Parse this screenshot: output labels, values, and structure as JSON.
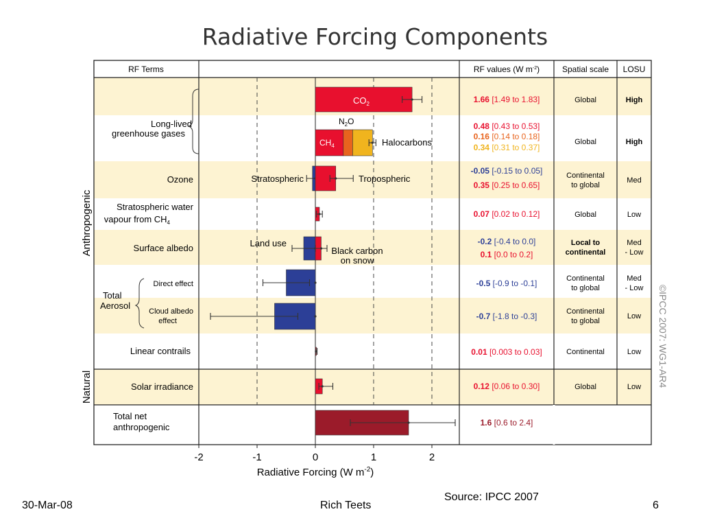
{
  "slide": {
    "title": "Radiative Forcing Components",
    "date": "30-Mar-08",
    "author": "Rich Teets",
    "page": "6",
    "source": "Source: IPCC 2007",
    "copyright": "©IPCC 2007: WG1-AR4"
  },
  "headers": {
    "rf_terms": "RF Terms",
    "rf_values": "RF values (W m",
    "rf_values_sup": "-2",
    "rf_values_close": ")",
    "spatial": "Spatial scale",
    "losu": "LOSU"
  },
  "groups": {
    "anthropogenic": "Anthropogenic",
    "natural": "Natural",
    "llgg_line1": "Long-lived",
    "llgg_line2": "greenhouse gases",
    "aerosol_line1": "Total",
    "aerosol_line2": "Aerosol"
  },
  "rows": [
    {
      "term": [
        "Ozone"
      ],
      "spatial": [
        "Continental",
        "to global"
      ],
      "losu": [
        "Med"
      ]
    },
    {
      "term": [
        "Stratospheric water",
        "vapour from CH"
      ],
      "term_sub": "4",
      "spatial": [
        "Global"
      ],
      "losu": [
        "Low"
      ]
    },
    {
      "term": [
        "Surface albedo"
      ],
      "spatial": [
        "Local to",
        "continental"
      ],
      "losu": [
        "Med",
        "- Low"
      ]
    },
    {
      "term": [
        "Direct effect"
      ],
      "spatial": [
        "Continental",
        "to global"
      ],
      "losu": [
        "Med",
        "- Low"
      ]
    },
    {
      "term": [
        "Cloud albedo",
        "effect"
      ],
      "spatial": [
        "Continental",
        "to global"
      ],
      "losu": [
        "Low"
      ]
    },
    {
      "term": [
        "Linear contrails"
      ],
      "spatial": [
        "Continental"
      ],
      "losu": [
        "Low"
      ]
    },
    {
      "term": [
        "Solar irradiance"
      ],
      "spatial": [
        "Global"
      ],
      "losu": [
        "Low"
      ]
    },
    {
      "term": [
        "Total net",
        "anthropogenic"
      ],
      "spatial": [],
      "losu": []
    }
  ],
  "llgg_spatial": [
    [
      "Global"
    ],
    [
      "Global"
    ]
  ],
  "llgg_losu": [
    [
      "High"
    ],
    [
      "High"
    ]
  ],
  "values_text": [
    [
      {
        "main": "1.66",
        "range": " [1.49 to 1.83]",
        "color": "#e8102e"
      }
    ],
    [
      {
        "main": "0.48",
        "range": " [0.43 to 0.53]",
        "color": "#e8102e"
      },
      {
        "main": "0.16",
        "range": " [0.14 to 0.18]",
        "color": "#e8641e"
      },
      {
        "main": "0.34",
        "range": " [0.31 to 0.37]",
        "color": "#f0b41e"
      }
    ],
    [
      {
        "main": "-0.05",
        "range": " [-0.15 to 0.05]",
        "color": "#2c3f97"
      },
      {
        "main": "0.35",
        "range": " [0.25 to 0.65]",
        "color": "#e8102e"
      }
    ],
    [
      {
        "main": "0.07",
        "range": " [0.02 to 0.12]",
        "color": "#e8102e"
      }
    ],
    [
      {
        "main": "-0.2",
        "range": " [-0.4 to 0.0]",
        "color": "#2c3f97"
      },
      {
        "main": "0.1",
        "range": " [0.0 to 0.2]",
        "color": "#e8102e"
      }
    ],
    [
      {
        "main": "-0.5",
        "range": " [-0.9 to -0.1]",
        "color": "#2c3f97"
      }
    ],
    [
      {
        "main": "-0.7",
        "range": " [-1.8 to -0.3]",
        "color": "#2c3f97"
      }
    ],
    [
      {
        "main": "0.01",
        "range": " [0.003 to 0.03]",
        "color": "#e8102e"
      }
    ],
    [
      {
        "main": "0.12",
        "range": " [0.06 to 0.30]",
        "color": "#e8102e"
      }
    ],
    [
      {
        "main": "1.6",
        "range": " [0.6 to 2.4]",
        "color": "#9b1b2a"
      }
    ]
  ],
  "chart_data": {
    "type": "bar",
    "orientation": "horizontal",
    "title": "Radiative Forcing Components",
    "xlabel": "Radiative Forcing  (W m",
    "xlabel_sup": "-2",
    "xlabel_close": ")",
    "xlim": [
      -2,
      2.5
    ],
    "xticks": [
      -2,
      -1,
      0,
      1,
      2
    ],
    "dashed_gridlines_at": [
      -1,
      1,
      2
    ],
    "bars": [
      {
        "label": "CO",
        "label_sub": "2",
        "row": 0,
        "start": 0,
        "end": 1.66,
        "lo": 1.49,
        "hi": 1.83,
        "color": "#e8102e"
      },
      {
        "label": "CH",
        "label_sub": "4",
        "row": 1,
        "start": 0,
        "end": 0.48,
        "color": "#e8102e"
      },
      {
        "label": "N",
        "label_sub": "2",
        "label_tail": "O",
        "row": 1,
        "start": 0.48,
        "end": 0.64,
        "color": "#e8641e"
      },
      {
        "label": "Halocarbons",
        "row": 1,
        "start": 0.64,
        "end": 0.98,
        "lo": 0.92,
        "hi": 1.04,
        "color": "#f0b41e"
      },
      {
        "label": "Stratospheric",
        "row": 2,
        "start": -0.05,
        "end": 0,
        "lo": -0.15,
        "hi": 0.05,
        "color": "#2c3f97"
      },
      {
        "label": "Tropospheric",
        "row": 2,
        "start": 0,
        "end": 0.35,
        "lo": 0.25,
        "hi": 0.65,
        "color": "#e8102e"
      },
      {
        "row": 3,
        "start": 0,
        "end": 0.07,
        "lo": 0.02,
        "hi": 0.12,
        "color": "#e8102e"
      },
      {
        "label": "Land use",
        "row": 4,
        "start": -0.2,
        "end": 0,
        "lo": -0.4,
        "hi": 0.0,
        "color": "#2c3f97"
      },
      {
        "label": "Black carbon",
        "label2": "on snow",
        "row": 4,
        "start": 0,
        "end": 0.1,
        "lo": 0.0,
        "hi": 0.2,
        "color": "#e8102e"
      },
      {
        "row": 5,
        "start": -0.5,
        "end": 0,
        "lo": -0.9,
        "hi": -0.1,
        "color": "#2c3f97"
      },
      {
        "row": 6,
        "start": -0.7,
        "end": 0,
        "lo": -1.8,
        "hi": -0.3,
        "color": "#2c3f97"
      },
      {
        "row": 7,
        "start": 0,
        "end": 0.01,
        "lo": 0.003,
        "hi": 0.03,
        "color": "#e8102e"
      },
      {
        "row": 8,
        "start": 0,
        "end": 0.12,
        "lo": 0.06,
        "hi": 0.3,
        "color": "#e8102e"
      },
      {
        "row": 9,
        "start": 0,
        "end": 1.6,
        "lo": 0.6,
        "hi": 2.4,
        "color": "#9b1b2a"
      }
    ]
  }
}
